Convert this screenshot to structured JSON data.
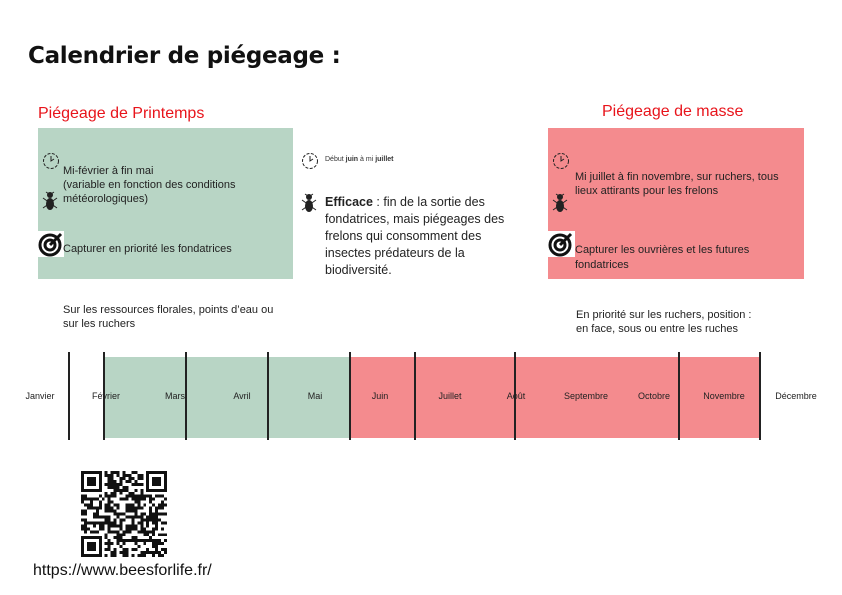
{
  "title": "Calendrier de piégeage :",
  "spring": {
    "heading": "Piégeage de Printemps",
    "period": "Mi-février à fin mai",
    "period_note_1": "(variable en fonction des conditions",
    "period_note_2": "météorologiques)",
    "target": "Capturer  en priorité les fondatrices",
    "location_1": "Sur les ressources florales, points d’eau ou",
    "location_2": "sur les ruchers"
  },
  "middle": {
    "period_prefix": "Début ",
    "period_juin": "juin",
    "period_mid": " à mi ",
    "period_juillet": "juillet",
    "efficace_label": "Efficace",
    "efficace_text": " : fin de la sortie des fondatrices, mais piégeages des frelons qui consomment des insectes prédateurs de la biodiversité."
  },
  "mass": {
    "heading": "Piégeage de masse",
    "period": "Mi juillet à fin novembre, sur ruchers, tous lieux attirants pour les frelons",
    "target": "Capturer les ouvrières et les futures fondatrices",
    "location_1": "En priorité sur les ruchers, position :",
    "location_2": "en face, sous ou entre les ruches"
  },
  "timeline": {
    "months": [
      "Janvier",
      "Février",
      "Mars",
      "Avril",
      "Mai",
      "Juin",
      "Juillet",
      "Août",
      "Septembre",
      "Octobre",
      "Novembre",
      "Décembre"
    ],
    "spring_range": [
      "Février",
      "Mai"
    ],
    "mass_range": [
      "Juin",
      "Novembre"
    ]
  },
  "colors": {
    "spring": "#b8d5c5",
    "mass": "#f48b8e",
    "heading": "#e8141b"
  },
  "footer": {
    "url": "https://www.beesforlife.fr/"
  }
}
